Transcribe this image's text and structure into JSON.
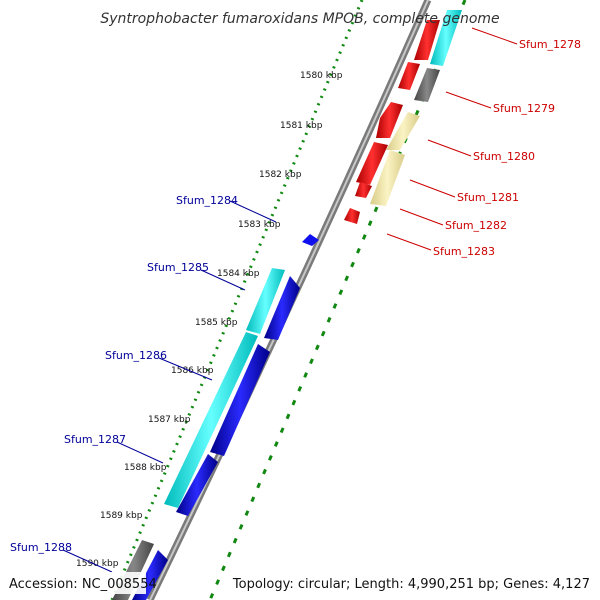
{
  "title": "Syntrophobacter fumaroxidans MPOB, complete genome",
  "accession": "Accession: NC_008554",
  "topology": "Topology: circular; Length: 4,990,251 bp; Genes: 4,127",
  "colors": {
    "backbone": "#7a7a7a",
    "tick_dots": "#118811",
    "forward_cds": "#ff1010",
    "reverse_cds": "#0000ee",
    "cyan_feature": "#00ffff",
    "yellow_feature": "#f5eaa8",
    "gray_feature": "#666666",
    "label_red": "#cc0000",
    "label_blue": "#000099"
  },
  "kbp_ticks": [
    "1580 kbp",
    "1581 kbp",
    "1582 kbp",
    "1583 kbp",
    "1584 kbp",
    "1585 kbp",
    "1586 kbp",
    "1587 kbp",
    "1588 kbp",
    "1589 kbp",
    "1590 kbp"
  ],
  "genes_right": [
    "Sfum_1278",
    "Sfum_1279",
    "Sfum_1280",
    "Sfum_1281",
    "Sfum_1282",
    "Sfum_1283"
  ],
  "genes_left": [
    "Sfum_1284",
    "Sfum_1285",
    "Sfum_1286",
    "Sfum_1287",
    "Sfum_1288"
  ]
}
